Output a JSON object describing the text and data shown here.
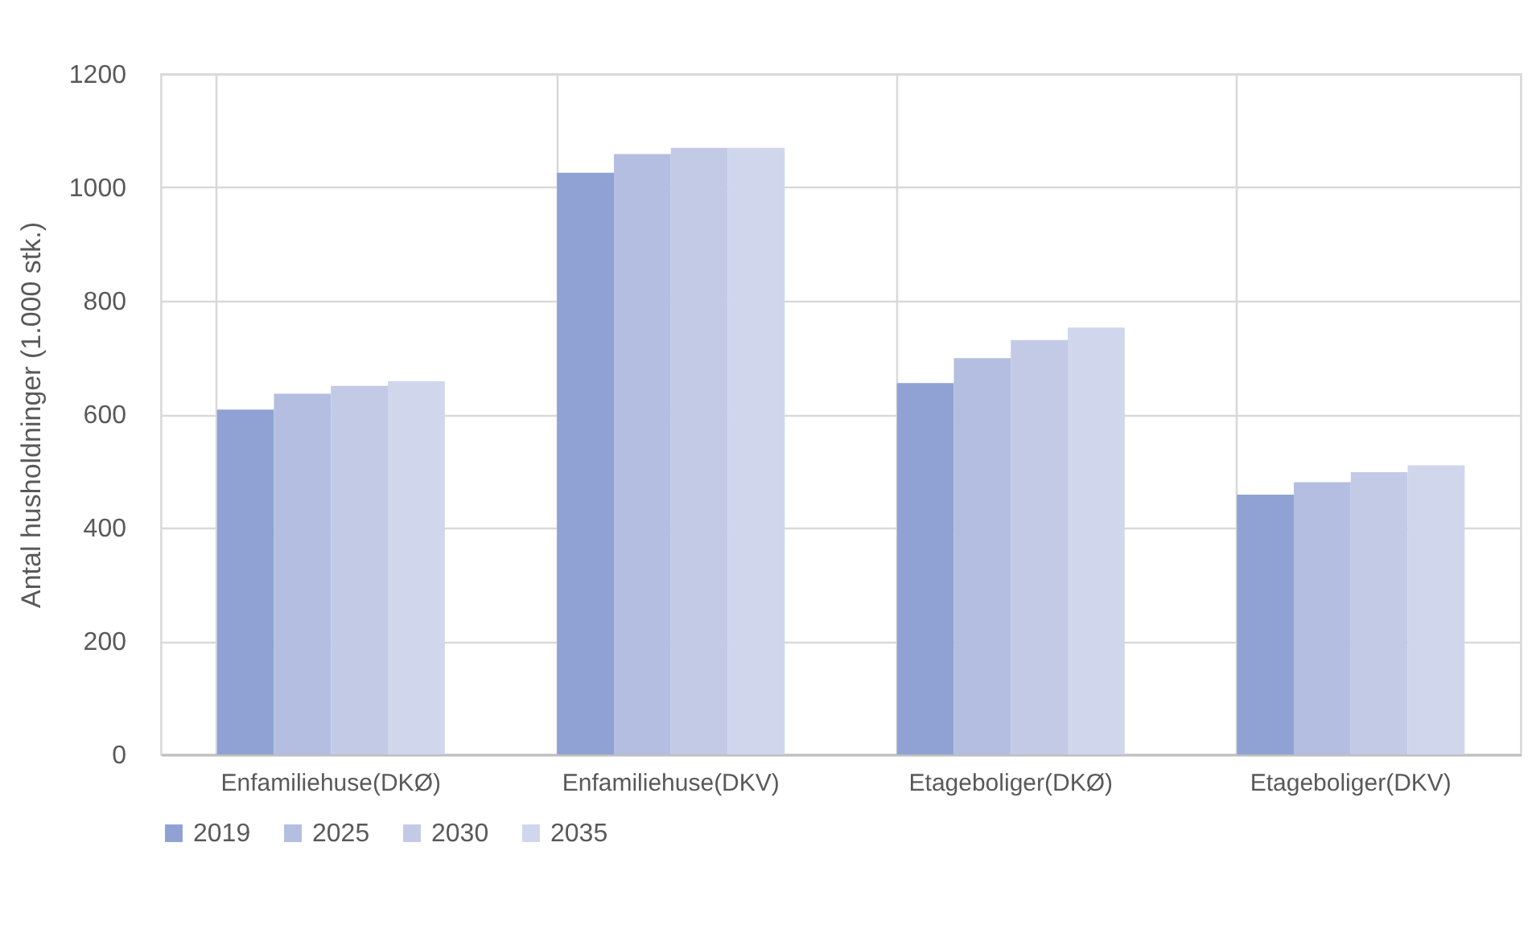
{
  "chart_data": {
    "type": "bar",
    "ylabel": "Antal husholdninger (1.000 stk.)",
    "categories": [
      "Enfamiliehuse(DKØ)",
      "Enfamiliehuse(DKV)",
      "Etageboliger(DKØ)",
      "Etageboliger(DKV)"
    ],
    "series": [
      {
        "name": "2019",
        "color": "#8fa2d3",
        "values": [
          608,
          1026,
          655,
          458
        ]
      },
      {
        "name": "2025",
        "color": "#b3bee0",
        "values": [
          636,
          1059,
          699,
          480
        ]
      },
      {
        "name": "2030",
        "color": "#c3cae6",
        "values": [
          650,
          1070,
          731,
          498
        ]
      },
      {
        "name": "2035",
        "color": "#d0d6eb",
        "values": [
          658,
          1070,
          753,
          510
        ]
      }
    ],
    "ylim": [
      0,
      1200
    ],
    "yticks": [
      0,
      200,
      400,
      600,
      800,
      1000,
      1200
    ],
    "grid": true,
    "legend": "bottom"
  }
}
